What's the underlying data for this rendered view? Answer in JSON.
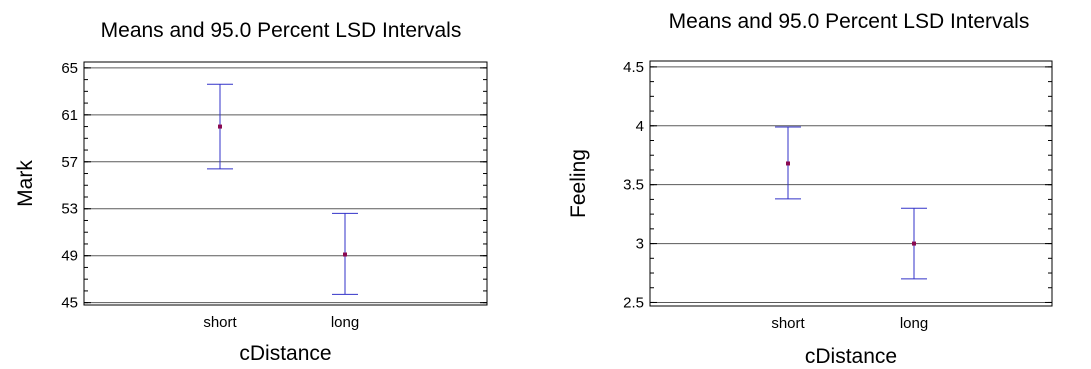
{
  "chart_data": [
    {
      "type": "interval",
      "title": "Means and 95.0 Percent LSD Intervals",
      "xlabel": "cDistance",
      "ylabel": "Mark",
      "categories": [
        "short",
        "long"
      ],
      "ylim": [
        44.8,
        65.5
      ],
      "yticks": [
        "45",
        "49",
        "53",
        "57",
        "61",
        "65"
      ],
      "ytick_values": [
        45,
        49,
        53,
        57,
        61,
        65
      ],
      "grid": true,
      "series": [
        {
          "mean": [
            60.0,
            49.1
          ],
          "lower": [
            56.4,
            45.7
          ],
          "upper": [
            63.6,
            52.6
          ]
        }
      ]
    },
    {
      "type": "interval",
      "title": "Means and 95.0 Percent LSD Intervals",
      "xlabel": "cDistance",
      "ylabel": "Feeling",
      "categories": [
        "short",
        "long"
      ],
      "ylim": [
        2.47,
        4.55
      ],
      "yticks": [
        "2.5",
        "3",
        "3.5",
        "4",
        "4.5"
      ],
      "ytick_values": [
        2.5,
        3.0,
        3.5,
        4.0,
        4.5
      ],
      "grid": true,
      "series": [
        {
          "mean": [
            3.68,
            3.0
          ],
          "lower": [
            3.38,
            2.7
          ],
          "upper": [
            3.99,
            3.3
          ]
        }
      ]
    }
  ]
}
